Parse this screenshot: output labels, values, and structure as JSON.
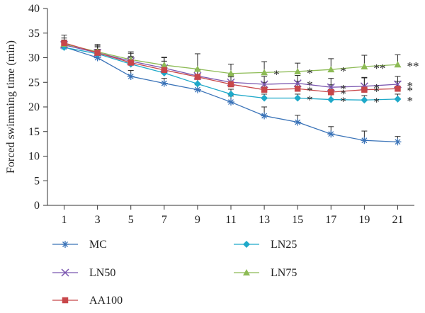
{
  "chart_data": {
    "type": "line",
    "ylabel": "Forced swimming time (min)",
    "xlabel": "",
    "x": [
      1,
      3,
      5,
      7,
      9,
      11,
      13,
      15,
      17,
      19,
      21
    ],
    "xlim": [
      0,
      22
    ],
    "ylim": [
      0,
      40
    ],
    "yticks": [
      0,
      5,
      10,
      15,
      20,
      25,
      30,
      35,
      40
    ],
    "grid": false,
    "legend_position": "bottom",
    "series": [
      {
        "name": "MC",
        "marker": "asterisk",
        "color": "#3a73b8",
        "values": [
          32.2,
          30.0,
          26.2,
          24.8,
          23.5,
          21.0,
          18.2,
          16.9,
          14.5,
          13.2,
          12.9
        ],
        "errors": [
          0.8,
          0.8,
          1.2,
          1.0,
          1.0,
          1.2,
          1.8,
          1.4,
          1.5,
          1.9,
          1.1
        ],
        "annotations": [
          "",
          "",
          "",
          "",
          "",
          "",
          "",
          "",
          "",
          "",
          ""
        ]
      },
      {
        "name": "LN25",
        "marker": "diamond",
        "color": "#1fa9c9",
        "values": [
          32.1,
          30.8,
          28.7,
          26.9,
          24.7,
          22.6,
          21.8,
          21.8,
          21.5,
          21.4,
          21.6
        ],
        "errors": [
          1.0,
          0.9,
          1.3,
          1.1,
          1.2,
          1.0,
          0.8,
          0.8,
          1.0,
          0.9,
          1.0
        ],
        "annotations": [
          "",
          "",
          "",
          "",
          "",
          "",
          "",
          "*",
          "*",
          "*",
          "*"
        ]
      },
      {
        "name": "LN50",
        "marker": "x",
        "color": "#7b57b0",
        "values": [
          32.6,
          31.0,
          29.3,
          27.9,
          26.3,
          25.0,
          24.6,
          24.8,
          24.0,
          24.2,
          24.6
        ],
        "errors": [
          1.0,
          1.2,
          1.0,
          1.4,
          1.4,
          1.6,
          1.6,
          1.6,
          1.8,
          1.8,
          1.6
        ],
        "annotations": [
          "",
          "",
          "",
          "",
          "",
          "",
          "",
          "*",
          "*",
          "*",
          "*"
        ]
      },
      {
        "name": "LN75",
        "marker": "triangle",
        "color": "#8dbb55",
        "values": [
          32.8,
          31.2,
          29.6,
          28.5,
          27.7,
          26.8,
          27.0,
          27.2,
          27.6,
          28.2,
          28.6
        ],
        "errors": [
          1.2,
          1.2,
          1.6,
          1.6,
          3.1,
          1.9,
          2.2,
          1.7,
          2.2,
          2.3,
          2.0
        ],
        "annotations": [
          "",
          "",
          "",
          "",
          "",
          "",
          "*",
          "*",
          "*",
          "**",
          "**"
        ]
      },
      {
        "name": "AA100",
        "marker": "square",
        "color": "#c8474a",
        "values": [
          33.0,
          31.0,
          29.0,
          27.5,
          26.1,
          24.6,
          23.5,
          23.7,
          23.0,
          23.5,
          23.7
        ],
        "errors": [
          1.6,
          1.7,
          1.9,
          2.5,
          1.4,
          1.5,
          1.5,
          1.5,
          1.5,
          2.4,
          1.5
        ],
        "annotations": [
          "",
          "",
          "",
          "",
          "",
          "",
          "",
          "*",
          "*",
          "*",
          "*"
        ]
      }
    ],
    "legend_order": [
      "MC",
      "LN25",
      "LN50",
      "LN75",
      "AA100"
    ]
  }
}
